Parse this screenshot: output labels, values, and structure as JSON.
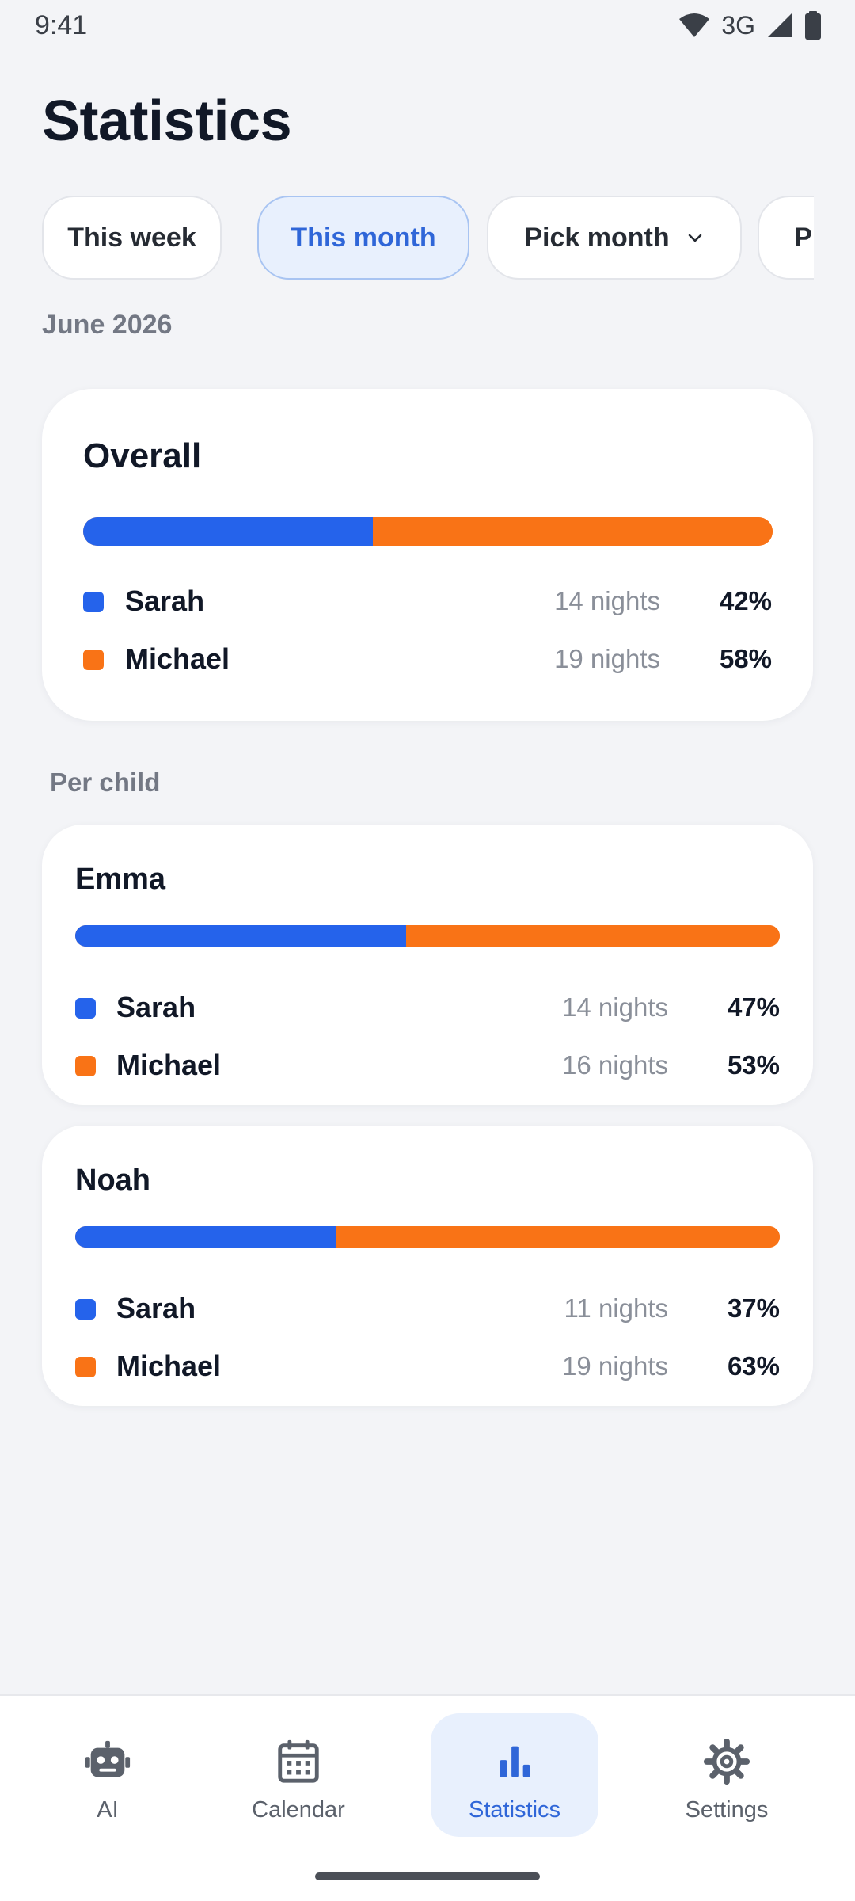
{
  "status_bar": {
    "time": "9:41",
    "network": "3G"
  },
  "page": {
    "title": "Statistics",
    "period": "June 2026",
    "section_per_child": "Per child"
  },
  "filters": {
    "chips": [
      {
        "label": "This week",
        "active": false
      },
      {
        "label": "This month",
        "active": true
      },
      {
        "label": "Pick month",
        "active": false,
        "dropdown": true
      },
      {
        "label": "Pi",
        "active": false
      }
    ]
  },
  "colors": {
    "parent_a": "#2563eb",
    "parent_b": "#f97316",
    "accent": "#2f66d8"
  },
  "overall": {
    "title": "Overall",
    "share_a": 0.42,
    "rows": [
      {
        "name": "Sarah",
        "nights": "14 nights",
        "percent": "42%"
      },
      {
        "name": "Michael",
        "nights": "19 nights",
        "percent": "58%"
      }
    ]
  },
  "children": [
    {
      "name": "Emma",
      "share_a": 0.47,
      "rows": [
        {
          "name": "Sarah",
          "nights": "14 nights",
          "percent": "47%"
        },
        {
          "name": "Michael",
          "nights": "16 nights",
          "percent": "53%"
        }
      ]
    },
    {
      "name": "Noah",
      "share_a": 0.37,
      "rows": [
        {
          "name": "Sarah",
          "nights": "11 nights",
          "percent": "37%"
        },
        {
          "name": "Michael",
          "nights": "19 nights",
          "percent": "63%"
        }
      ]
    }
  ],
  "bottom_nav": {
    "items": [
      {
        "label": "AI",
        "icon": "robot-icon",
        "active": false
      },
      {
        "label": "Calendar",
        "icon": "calendar-icon",
        "active": false
      },
      {
        "label": "Statistics",
        "icon": "bar-chart-icon",
        "active": true
      },
      {
        "label": "Settings",
        "icon": "gear-icon",
        "active": false
      }
    ]
  }
}
